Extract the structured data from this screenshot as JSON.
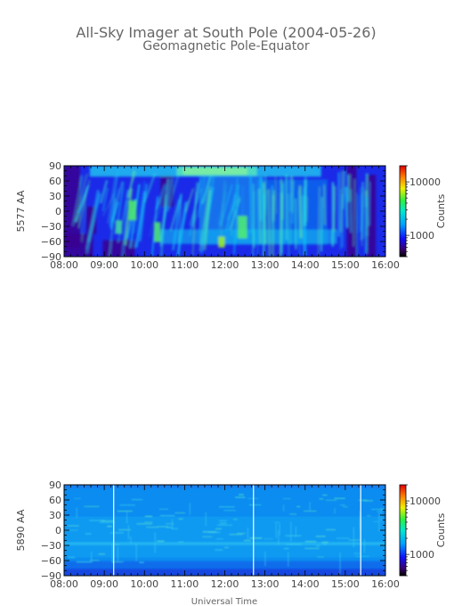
{
  "title": "All-Sky Imager at South Pole (2004-05-26)",
  "subtitle": "Geomagnetic Pole-Equator",
  "xlabel": "Universal Time",
  "colors": {
    "plot_frame": "#000000",
    "text": "#555555"
  },
  "chart_data": [
    {
      "type": "heatmap",
      "ylabel": "5577 AA",
      "x_ticks": [
        "08:00",
        "09:00",
        "10:00",
        "11:00",
        "12:00",
        "13:00",
        "14:00",
        "15:00",
        "16:00"
      ],
      "xlim": [
        "08:00",
        "16:00"
      ],
      "y_ticks": [
        90,
        60,
        30,
        0,
        -30,
        -60,
        -90
      ],
      "ylim": [
        -90,
        90
      ],
      "colorbar": {
        "label": "Counts",
        "scale": "log",
        "ticks": [
          "10000",
          "1000"
        ],
        "tick_values": [
          10000,
          1000
        ],
        "range": [
          400,
          20000
        ]
      }
    },
    {
      "type": "heatmap",
      "ylabel": "5890 AA",
      "x_ticks": [
        "08:00",
        "09:00",
        "10:00",
        "11:00",
        "12:00",
        "13:00",
        "14:00",
        "15:00",
        "16:00"
      ],
      "xlim": [
        "08:00",
        "16:00"
      ],
      "y_ticks": [
        90,
        60,
        30,
        0,
        -30,
        -60,
        -90
      ],
      "ylim": [
        -90,
        90
      ],
      "colorbar": {
        "label": "Counts",
        "scale": "log",
        "ticks": [
          "10000",
          "1000"
        ],
        "tick_values": [
          10000,
          1000
        ],
        "range": [
          400,
          20000
        ]
      }
    }
  ]
}
